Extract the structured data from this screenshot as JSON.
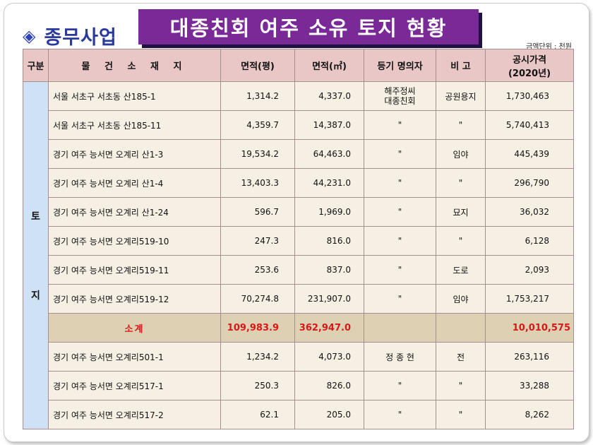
{
  "section": {
    "icon": "diamond-icon",
    "label": "종무사업"
  },
  "title": "대종친회 여주 소유 토지 현황",
  "unit_note": "금액단위 : 천원",
  "headers": {
    "gubun": "구분",
    "location": "물 건 소 재 지",
    "area_pyeong": "면적(평)",
    "area_m2": "면적(㎡)",
    "owner": "등기 명의자",
    "note": "비 고",
    "price_line1": "공시가격",
    "price_line2": "(2020년)"
  },
  "gubun_label": {
    "char1": "토",
    "char2": "지"
  },
  "rows": [
    {
      "location": "서울 서초구 서초동 산185-1",
      "pyeong": "1,314.2",
      "m2": "4,337.0",
      "owner_line1": "해주정씨",
      "owner_line2": "대종친회",
      "note": "공원용지",
      "price": "1,730,463"
    },
    {
      "location": "서울 서초구 서초동 산185-11",
      "pyeong": "4,359.7",
      "m2": "14,387.0",
      "owner_line1": "\"",
      "owner_line2": "",
      "note": "\"",
      "price": "5,740,413"
    },
    {
      "location": "경기 여주 능서면 오계리 산1-3",
      "pyeong": "19,534.2",
      "m2": "64,463.0",
      "owner_line1": "\"",
      "owner_line2": "",
      "note": "임야",
      "price": "445,439"
    },
    {
      "location": "경기 여주 능서면 오계리 산1-4",
      "pyeong": "13,403.3",
      "m2": "44,231.0",
      "owner_line1": "\"",
      "owner_line2": "",
      "note": "\"",
      "price": "296,790"
    },
    {
      "location": "경기 여주 능서면 오계리 산1-24",
      "pyeong": "596.7",
      "m2": "1,969.0",
      "owner_line1": "\"",
      "owner_line2": "",
      "note": "묘지",
      "price": "36,032"
    },
    {
      "location": "경기 여주 능서면 오계리519-10",
      "pyeong": "247.3",
      "m2": "816.0",
      "owner_line1": "\"",
      "owner_line2": "",
      "note": "\"",
      "price": "6,128"
    },
    {
      "location": "경기 여주 능서면 오계리519-11",
      "pyeong": "253.6",
      "m2": "837.0",
      "owner_line1": "\"",
      "owner_line2": "",
      "note": "도로",
      "price": "2,093"
    },
    {
      "location": "경기 여주 능서면 오계리519-12",
      "pyeong": "70,274.8",
      "m2": "231,907.0",
      "owner_line1": "\"",
      "owner_line2": "",
      "note": "임야",
      "price": "1,753,217"
    }
  ],
  "subtotal": {
    "label": "소계",
    "pyeong": "109,983.9",
    "m2": "362,947.0",
    "price": "10,010,575"
  },
  "rows_after": [
    {
      "location": "경기 여주 능서면 오계리501-1",
      "pyeong": "1,234.2",
      "m2": "4,073.0",
      "owner": "정 종 현",
      "note": "전",
      "price": "263,116"
    },
    {
      "location": "경기 여주 능서면 오계리517-1",
      "pyeong": "250.3",
      "m2": "826.0",
      "owner": "\"",
      "note": "\"",
      "price": "33,288"
    },
    {
      "location": "경기 여주 능서면 오계리517-2",
      "pyeong": "62.1",
      "m2": "205.0",
      "owner": "\"",
      "note": "\"",
      "price": "8,262"
    }
  ],
  "colors": {
    "title_bg": "#7a2a96",
    "header_bg": "#e9c7c7",
    "gubun_bg": "#cfe2f5",
    "subtotal_text": "#d81818",
    "section_text": "#2a3a9c"
  }
}
